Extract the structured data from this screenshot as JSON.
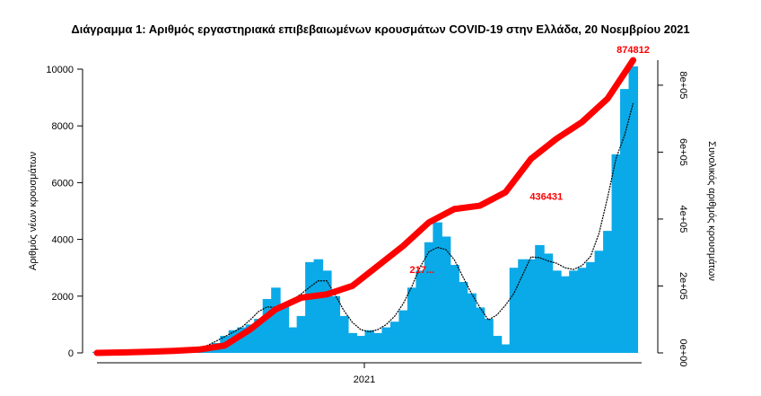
{
  "chart_data": {
    "type": "bar",
    "title": "Διάγραμμα 1: Αριθμός εργαστηριακά επιβεβαιωμένων κρουσμάτων COVID-19 στην Ελλάδα, 20 Νοεμβρίου 2021",
    "xlabel": "",
    "ylabel": "Αριθμός νέων κρουσμάτων",
    "y2label": "Συνολικός αριθμός κρουσμάτων",
    "x_tick_labels": [
      "2021"
    ],
    "y_ticks": [
      "0",
      "2000",
      "4000",
      "6000",
      "8000",
      "10000"
    ],
    "y2_ticks": [
      "0e+00",
      "2e+05",
      "4e+05",
      "6e+05",
      "8e+05"
    ],
    "ylim": [
      0,
      10400
    ],
    "y2lim": [
      0,
      874812
    ],
    "colors": {
      "bars": "#0aaae8",
      "cumulative_line": "#ff0000",
      "moving_average": "#000000"
    },
    "annotations": [
      {
        "text": "874812",
        "x": 630,
        "y": 874812
      },
      {
        "text": "436431",
        "x": 528,
        "y": 436431
      },
      {
        "text": "217...",
        "x": 382,
        "y": 217000
      }
    ],
    "series": [
      {
        "type": "bar",
        "x": [
          0,
          10,
          20,
          30,
          40,
          50,
          60,
          70,
          80,
          90,
          100,
          110,
          120,
          130,
          140,
          150,
          160,
          170,
          180,
          190,
          200,
          210,
          220,
          230,
          240,
          250,
          260,
          270,
          280,
          290,
          300,
          310,
          320,
          330,
          340,
          350,
          360,
          370,
          380,
          390,
          400,
          410,
          420,
          430,
          440,
          450,
          460,
          470,
          480,
          490,
          500,
          510,
          520,
          530,
          540,
          550,
          560,
          570,
          580,
          590,
          600,
          610,
          620,
          630
        ],
        "values": [
          40,
          30,
          40,
          60,
          40,
          50,
          50,
          60,
          50,
          40,
          50,
          60,
          120,
          200,
          350,
          600,
          800,
          900,
          1000,
          1200,
          1900,
          2300,
          1700,
          900,
          1300,
          3200,
          3300,
          2900,
          2000,
          1300,
          700,
          600,
          800,
          700,
          900,
          1100,
          1500,
          2300,
          2900,
          3900,
          4600,
          4100,
          3100,
          2500,
          2100,
          1600,
          1200,
          600,
          300,
          3000,
          3300,
          3300,
          3800,
          3500,
          2900,
          2700,
          2900,
          3000,
          3200,
          3600,
          4300,
          7000,
          9300,
          10100
        ]
      },
      {
        "type": "line",
        "name": "",
        "x": [
          0,
          30,
          60,
          90,
          120,
          150,
          180,
          210,
          240,
          270,
          300,
          330,
          360,
          390,
          420,
          450,
          480,
          510,
          540,
          570,
          600,
          630
        ],
        "values": [
          0,
          1500,
          3500,
          6000,
          10000,
          22000,
          70000,
          130000,
          165000,
          175000,
          200000,
          260000,
          320000,
          390000,
          430000,
          440000,
          480000,
          580000,
          640000,
          690000,
          760000,
          874812
        ]
      }
    ]
  }
}
